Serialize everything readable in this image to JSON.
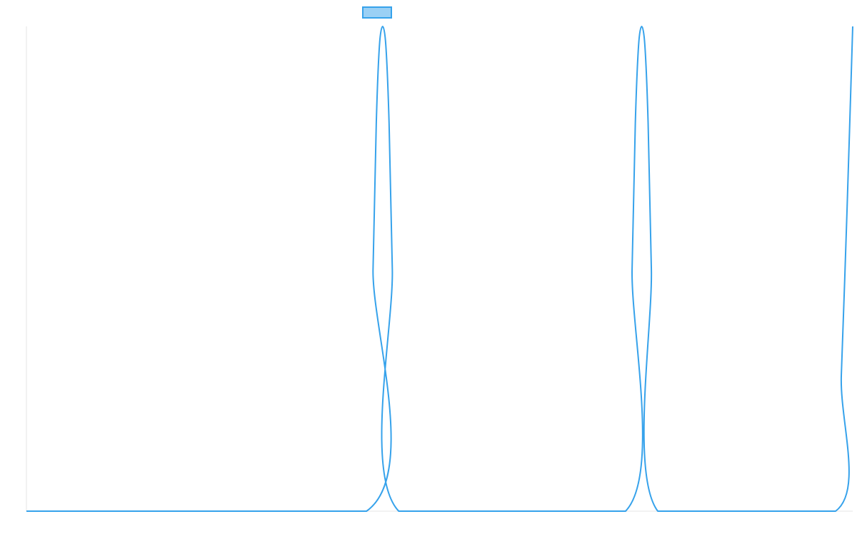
{
  "chart_data": {
    "type": "line",
    "title": "",
    "xlabel": "",
    "ylabel": "",
    "xlim": [
      0,
      1
    ],
    "ylim": [
      0,
      1
    ],
    "grid": false,
    "legend": {
      "placement": "top-center",
      "entries": [
        {
          "name": "",
          "color": "#36a2eb",
          "fill": "#9ad0f5"
        }
      ]
    },
    "series": [
      {
        "color": "#36a2eb",
        "x": [
          0,
          0.4116,
          0.4195,
          0.4234,
          0.4272,
          0.4311,
          0.435,
          0.4389,
          0.4428,
          0.4506,
          0.7251,
          0.733,
          0.7369,
          0.7408,
          0.7446,
          0.7485,
          0.7524,
          0.7563,
          0.7641,
          0.9793,
          0.9862,
          0.9931,
          1.0
        ],
        "y": [
          0,
          0,
          0.5,
          0.8,
          0.96,
          1.0,
          0.96,
          0.8,
          0.5,
          0,
          0,
          0.5,
          0.8,
          0.96,
          1.0,
          0.96,
          0.8,
          0.5,
          0,
          0,
          0.28,
          0.62,
          1.0
        ]
      }
    ]
  }
}
